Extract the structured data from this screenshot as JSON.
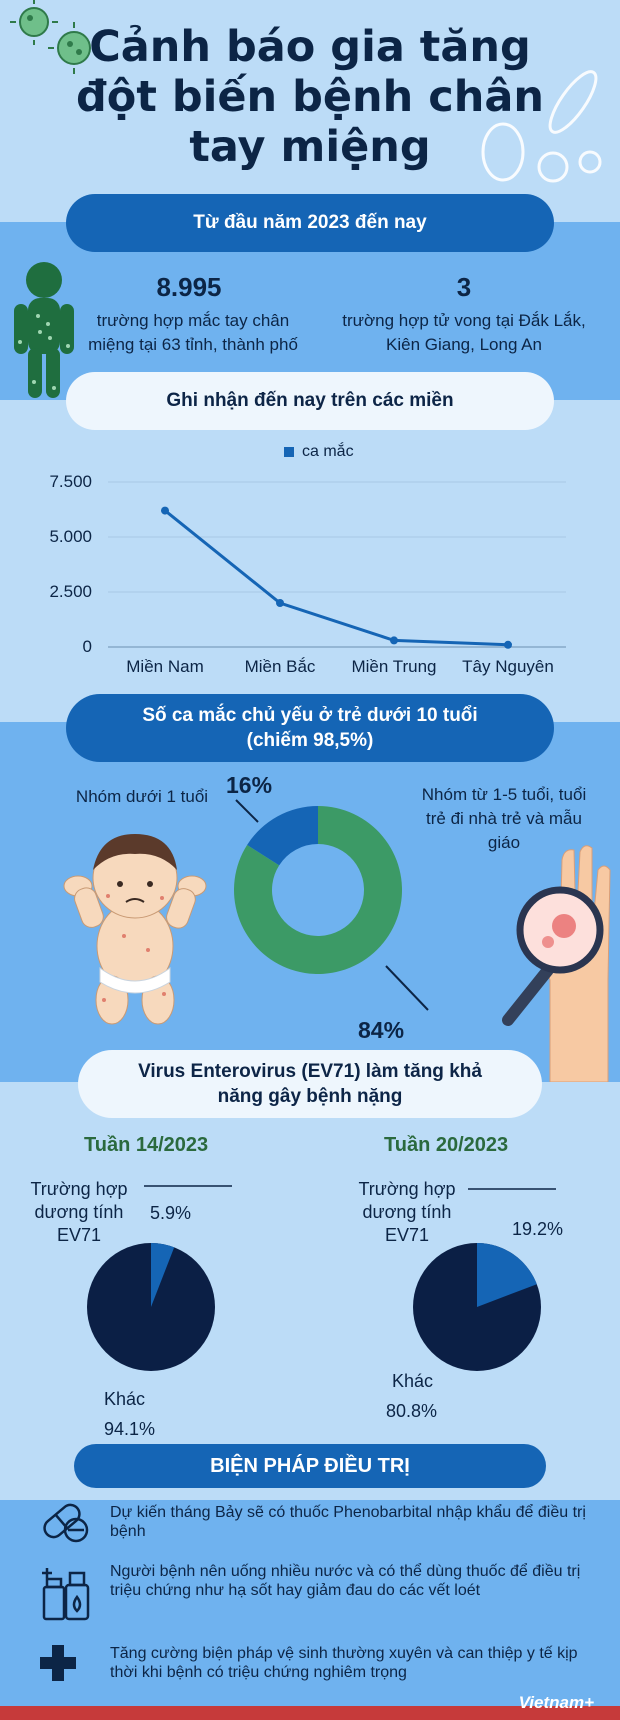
{
  "header": {
    "title": "Cảnh báo gia tăng đột biến bệnh chân tay miệng"
  },
  "since": {
    "label": "Từ đầu năm 2023 đến nay"
  },
  "stats": [
    {
      "value": "8.995",
      "text": "trường hợp mắc tay chân miệng tại 63 tỉnh, thành phố"
    },
    {
      "value": "3",
      "text": "trường hợp tử vong tại Đắk Lắk, Kiên Giang, Long An"
    }
  ],
  "regions": {
    "label": "Ghi nhận đến nay trên các miền"
  },
  "chart_data": {
    "type": "line",
    "legend": "ca mắc",
    "categories": [
      "Miền Nam",
      "Miền Bắc",
      "Miền Trung",
      "Tây Nguyên"
    ],
    "series": [
      {
        "name": "ca mắc",
        "values": [
          6200,
          2000,
          300,
          100
        ]
      }
    ],
    "yticks": [
      "7.500",
      "5.000",
      "2.500",
      "0"
    ],
    "ylim": [
      0,
      7500
    ],
    "grid": true,
    "color": "#1565b5"
  },
  "children": {
    "label_line1": "Số ca mắc chủ yếu ở trẻ dưới 10 tuổi",
    "label_line2": "(chiếm 98,5%)",
    "group_under1": "Nhóm dưới 1 tuổi",
    "group_1to5": "Nhóm từ 1-5 tuổi, tuổi trẻ đi nhà trẻ và mẫu giáo",
    "pct_small": "16%",
    "pct_large": "84%",
    "donut": [
      {
        "value": 16,
        "color": "#1565b5"
      },
      {
        "value": 84,
        "color": "#3c9a66"
      }
    ]
  },
  "virus": {
    "label_line1": "Virus Enterovirus (EV71) làm tăng khả",
    "label_line2": "năng gây bệnh nặng",
    "weeks": [
      {
        "title": "Tuần 14/2023",
        "positive_label": "Trường hợp dương tính EV71",
        "positive_pct": "5.9%",
        "other_label": "Khác",
        "other_pct": "94.1%",
        "positive": 5.9
      },
      {
        "title": "Tuần 20/2023",
        "positive_label": "Trường hợp dương tính EV71",
        "positive_pct": "19.2%",
        "other_label": "Khác",
        "other_pct": "80.8%",
        "positive": 19.2
      }
    ],
    "colors": {
      "positive": "#1565b5",
      "other": "#0b1f45"
    }
  },
  "treatment": {
    "label": "BIỆN PHÁP ĐIỀU TRỊ",
    "items": [
      {
        "icon": "pill-capsule-icon",
        "text": "Dự kiến tháng Bảy sẽ có thuốc Phenobarbital nhập khẩu để điều trị bệnh"
      },
      {
        "icon": "medicine-bottle-icon",
        "text": "Người bệnh nên uống nhiều nước và có thể dùng thuốc để điều trị triệu chứng như hạ sốt hay giảm đau do các vết loét"
      },
      {
        "icon": "medical-cross-icon",
        "text": "Tăng cường biện pháp vệ sinh thường xuyên và can thiệp y tế kịp thời khi bệnh có triệu chứng nghiêm trọng"
      }
    ]
  },
  "footer": {
    "brand": "Vietnam+"
  }
}
